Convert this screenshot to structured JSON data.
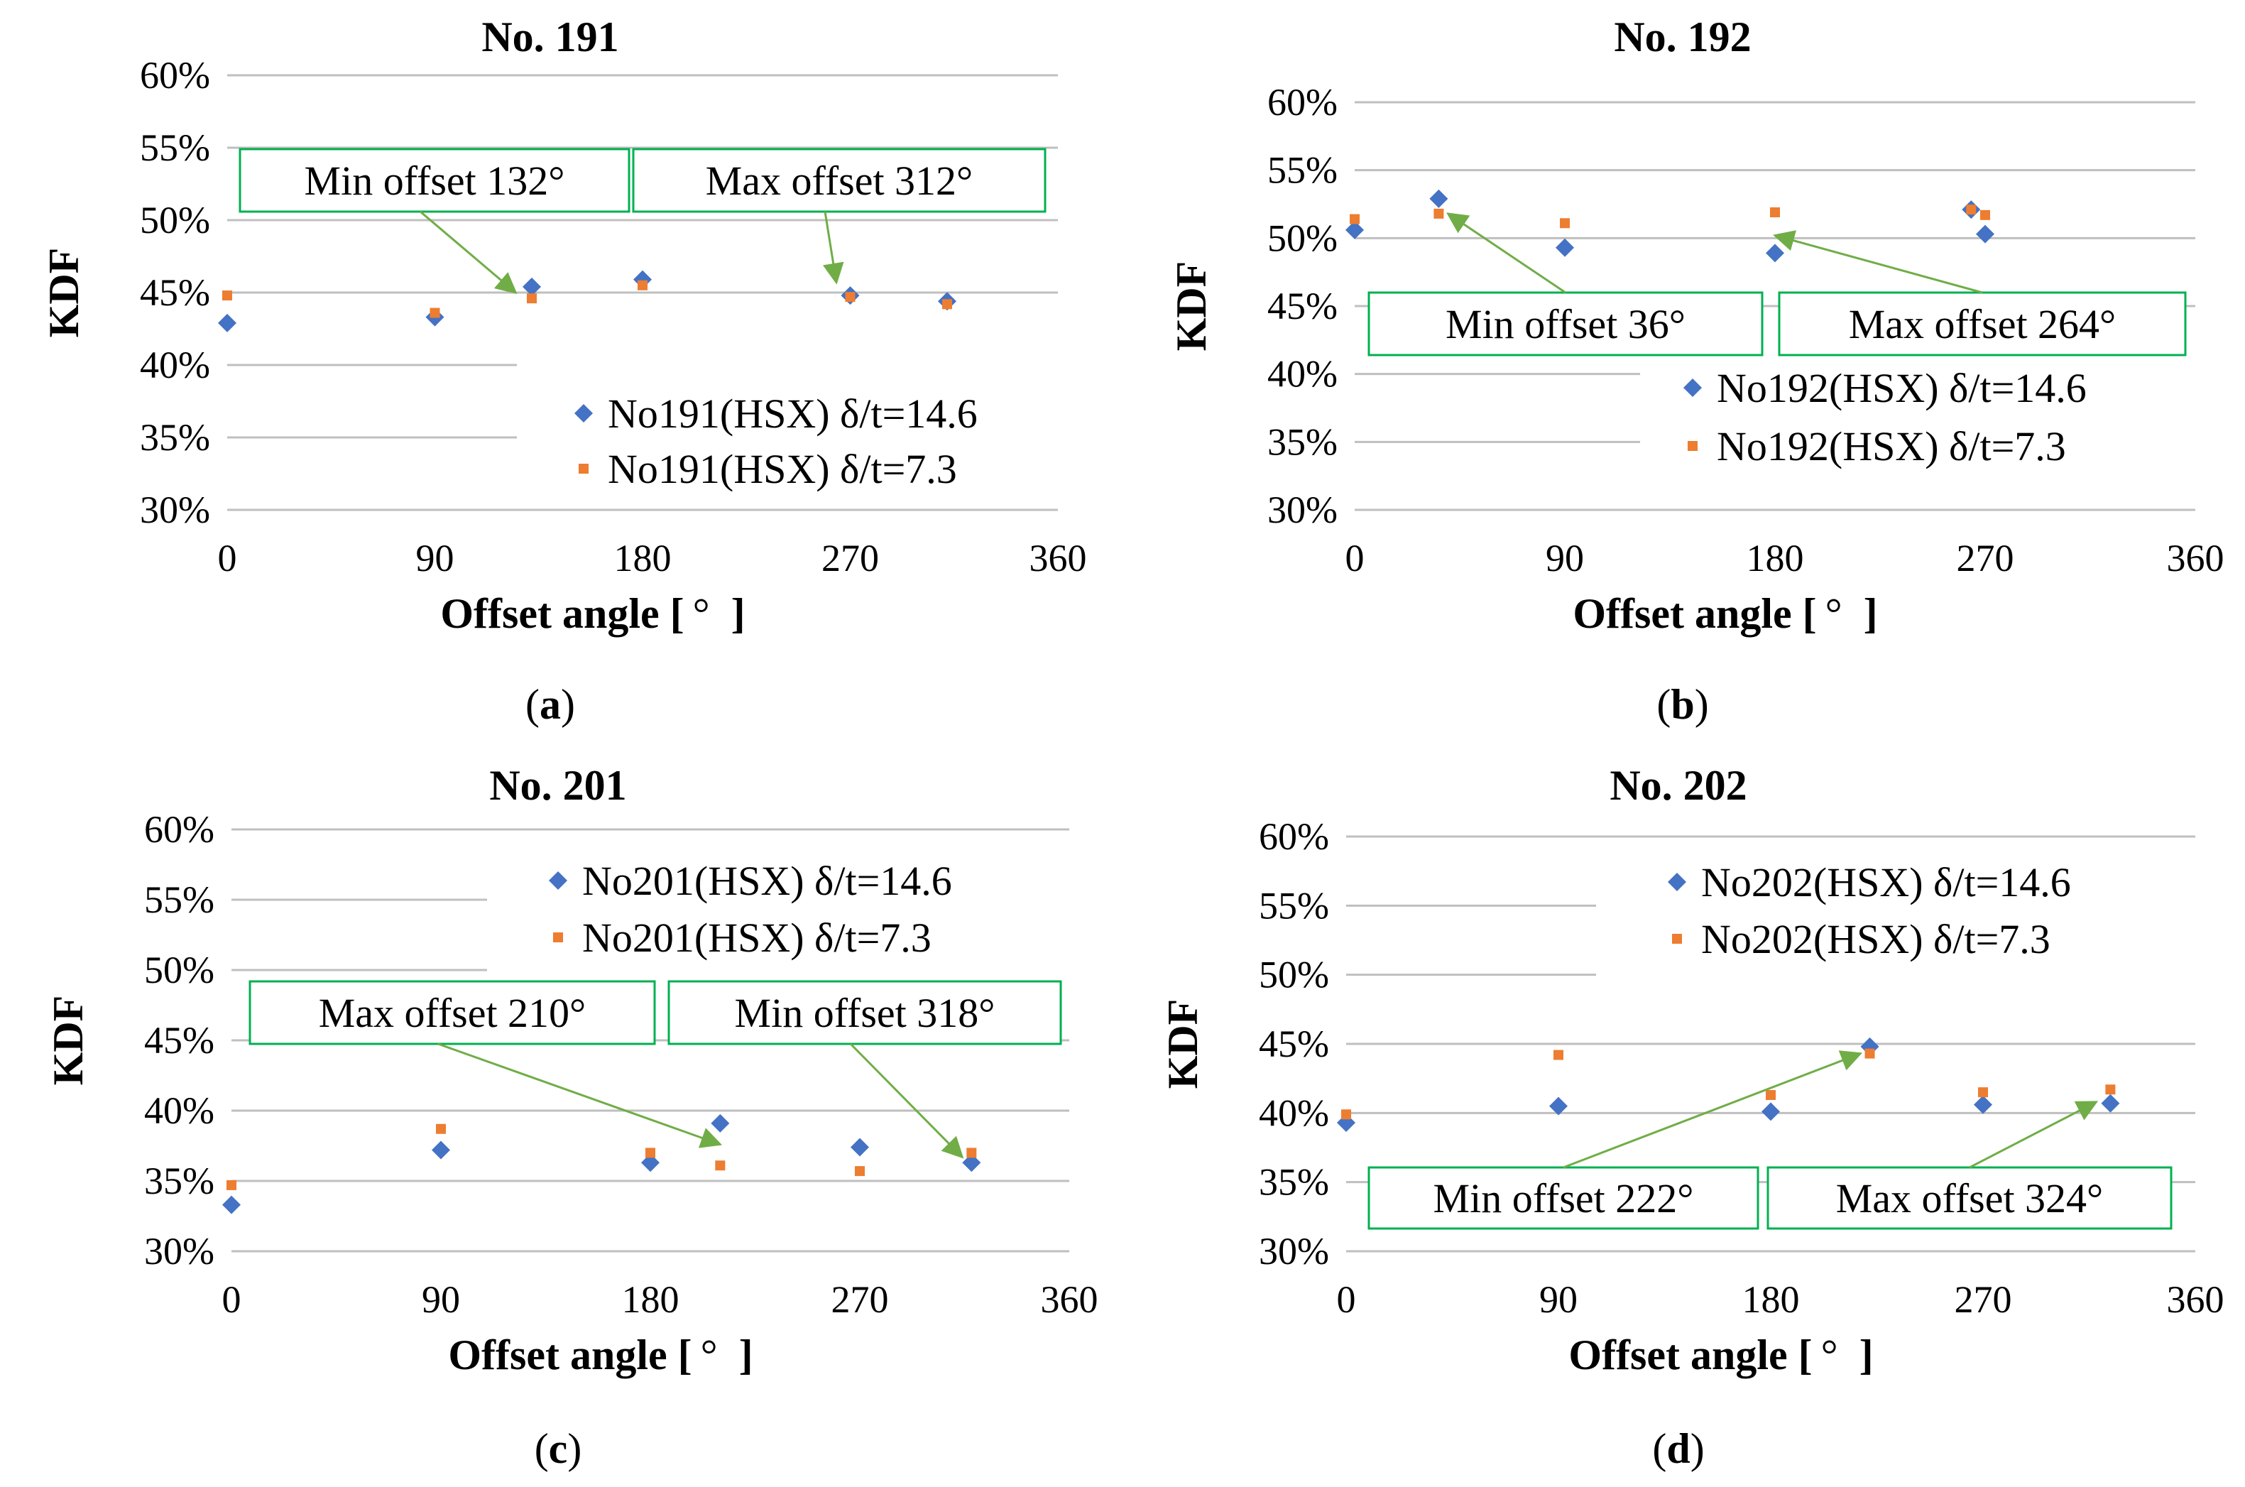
{
  "colors": {
    "series1": "#4472C4",
    "series2": "#ED7D31",
    "grid": "#BFBFBF",
    "axis": "#BFBFBF",
    "annotation_border": "#00B050",
    "arrow": "#70AD47"
  },
  "chart_data": [
    {
      "type": "scatter",
      "panel": "a",
      "caption_letter": "a",
      "title": "No. 191",
      "xlabel": "Offset angle [°]",
      "xlabel_main": "Offset angle [",
      "xlabel_unit": "°",
      "xlabel_close": "]",
      "ylabel": "KDF",
      "xlim": [
        0,
        360
      ],
      "ylim": [
        0.3,
        0.6
      ],
      "xticks": [
        0,
        90,
        180,
        270,
        360
      ],
      "xtick_labels": [
        "0",
        "90",
        "180",
        "270",
        "360"
      ],
      "yticks": [
        0.3,
        0.35,
        0.4,
        0.45,
        0.5,
        0.55,
        0.6
      ],
      "ytick_labels": [
        "30%",
        "35%",
        "40%",
        "45%",
        "50%",
        "55%",
        "60%"
      ],
      "grid": true,
      "legend_position": "bottom-right",
      "series": [
        {
          "name": "No191(HSX) δ/t=14.6",
          "marker": "diamond",
          "x": [
            0,
            90,
            132,
            180,
            270,
            312
          ],
          "y": [
            0.429,
            0.433,
            0.454,
            0.459,
            0.448,
            0.444
          ]
        },
        {
          "name": "No191(HSX) δ/t=7.3",
          "marker": "square",
          "x": [
            0,
            90,
            132,
            180,
            270,
            312
          ],
          "y": [
            0.448,
            0.436,
            0.446,
            0.455,
            0.447,
            0.442
          ]
        }
      ],
      "annotations": [
        {
          "text": "Min offset 132°",
          "target": [
            125,
            0.45
          ],
          "attach": "bottom-center"
        },
        {
          "text": "Max offset 312°",
          "target": [
            264,
            0.457
          ],
          "attach": "bottom-center"
        }
      ]
    },
    {
      "type": "scatter",
      "panel": "b",
      "caption_letter": "b",
      "title": "No. 192",
      "xlabel": "Offset angle [°]",
      "xlabel_main": "Offset angle [",
      "xlabel_unit": "°",
      "xlabel_close": "]",
      "ylabel": "KDF",
      "xlim": [
        0,
        360
      ],
      "ylim": [
        0.3,
        0.6
      ],
      "xticks": [
        0,
        90,
        180,
        270,
        360
      ],
      "xtick_labels": [
        "0",
        "90",
        "180",
        "270",
        "360"
      ],
      "yticks": [
        0.3,
        0.35,
        0.4,
        0.45,
        0.5,
        0.55,
        0.6
      ],
      "ytick_labels": [
        "30%",
        "35%",
        "40%",
        "45%",
        "50%",
        "55%",
        "60%"
      ],
      "grid": true,
      "legend_position": "bottom-right",
      "series": [
        {
          "name": "No192(HSX) δ/t=14.6",
          "marker": "diamond",
          "x": [
            0,
            36,
            90,
            180,
            264,
            270
          ],
          "y": [
            0.506,
            0.529,
            0.493,
            0.489,
            0.521,
            0.503
          ]
        },
        {
          "name": "No192(HSX) δ/t=7.3",
          "marker": "square",
          "x": [
            0,
            36,
            90,
            180,
            264,
            270
          ],
          "y": [
            0.514,
            0.518,
            0.511,
            0.519,
            0.521,
            0.517
          ]
        }
      ],
      "annotations": [
        {
          "text": "Min offset 36°",
          "target": [
            40,
            0.518
          ],
          "attach": "top-center"
        },
        {
          "text": "Max offset 264°",
          "target": [
            180,
            0.502
          ],
          "attach": "top-center"
        }
      ]
    },
    {
      "type": "scatter",
      "panel": "c",
      "caption_letter": "c",
      "title": "No. 201",
      "xlabel": "Offset angle [°]",
      "xlabel_main": "Offset angle [",
      "xlabel_unit": "°",
      "xlabel_close": "]",
      "ylabel": "KDF",
      "xlim": [
        0,
        360
      ],
      "ylim": [
        0.3,
        0.6
      ],
      "xticks": [
        0,
        90,
        180,
        270,
        360
      ],
      "xtick_labels": [
        "0",
        "90",
        "180",
        "270",
        "360"
      ],
      "yticks": [
        0.3,
        0.35,
        0.4,
        0.45,
        0.5,
        0.55,
        0.6
      ],
      "ytick_labels": [
        "30%",
        "35%",
        "40%",
        "45%",
        "50%",
        "55%",
        "60%"
      ],
      "grid": true,
      "legend_position": "top-right",
      "series": [
        {
          "name": "No201(HSX) δ/t=14.6",
          "marker": "diamond",
          "x": [
            0,
            90,
            180,
            210,
            270,
            318
          ],
          "y": [
            0.333,
            0.372,
            0.363,
            0.391,
            0.374,
            0.363
          ]
        },
        {
          "name": "No201(HSX) δ/t=7.3",
          "marker": "square",
          "x": [
            0,
            90,
            180,
            210,
            270,
            318
          ],
          "y": [
            0.347,
            0.387,
            0.37,
            0.361,
            0.357,
            0.37
          ]
        }
      ],
      "annotations": [
        {
          "text": "Max offset 210°",
          "target": [
            210,
            0.376
          ],
          "attach": "bottom-center"
        },
        {
          "text": "Min offset 318°",
          "target": [
            314,
            0.367
          ],
          "attach": "bottom-center"
        }
      ]
    },
    {
      "type": "scatter",
      "panel": "d",
      "caption_letter": "d",
      "title": "No. 202",
      "xlabel": "Offset angle [°]",
      "xlabel_main": "Offset angle [",
      "xlabel_unit": "°",
      "xlabel_close": "]",
      "ylabel": "KDF",
      "xlim": [
        0,
        360
      ],
      "ylim": [
        0.3,
        0.6
      ],
      "xticks": [
        0,
        90,
        180,
        270,
        360
      ],
      "xtick_labels": [
        "0",
        "90",
        "180",
        "270",
        "360"
      ],
      "yticks": [
        0.3,
        0.35,
        0.4,
        0.45,
        0.5,
        0.55,
        0.6
      ],
      "ytick_labels": [
        "30%",
        "35%",
        "40%",
        "45%",
        "50%",
        "55%",
        "60%"
      ],
      "grid": true,
      "legend_position": "top-right",
      "series": [
        {
          "name": "No202(HSX) δ/t=14.6",
          "marker": "diamond",
          "x": [
            0,
            90,
            180,
            222,
            270,
            324
          ],
          "y": [
            0.393,
            0.405,
            0.401,
            0.448,
            0.406,
            0.407
          ]
        },
        {
          "name": "No202(HSX) δ/t=7.3",
          "marker": "square",
          "x": [
            0,
            90,
            180,
            222,
            270,
            324
          ],
          "y": [
            0.399,
            0.442,
            0.413,
            0.443,
            0.415,
            0.417
          ]
        }
      ],
      "annotations": [
        {
          "text": "Min offset 222°",
          "target": [
            218,
            0.443
          ],
          "attach": "top-center"
        },
        {
          "text": "Max offset 324°",
          "target": [
            318,
            0.408
          ],
          "attach": "top-center"
        }
      ]
    }
  ]
}
